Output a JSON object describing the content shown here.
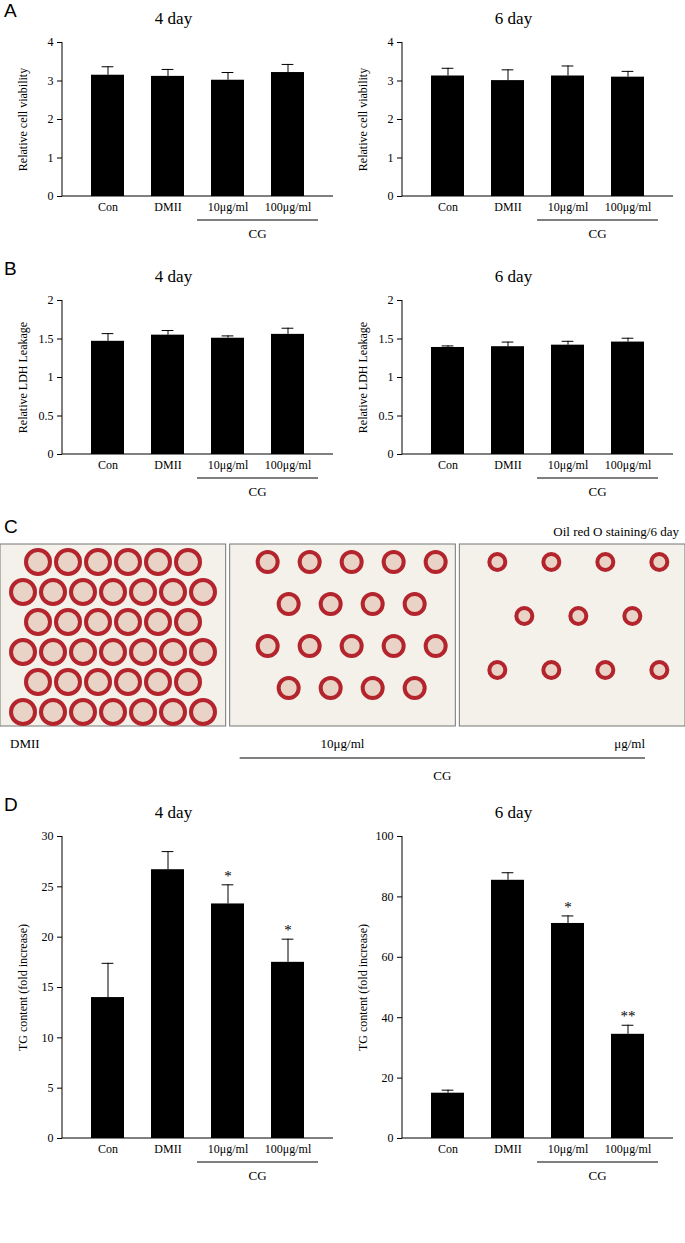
{
  "chart_data": [
    {
      "panel": "A",
      "type": "bar",
      "title": "4 day",
      "categories": [
        "Con",
        "DMII",
        "10μg/ml",
        "100μg/ml"
      ],
      "values": [
        3.15,
        3.12,
        3.02,
        3.22
      ],
      "errors": [
        0.22,
        0.18,
        0.2,
        0.21
      ],
      "ylabel": "Relative cell viability",
      "ylim": [
        0,
        4
      ],
      "yticks": [
        0,
        1,
        2,
        3,
        4
      ],
      "color": "#000000",
      "category_group": {
        "label": "CG",
        "members": [
          "10μg/ml",
          "100μg/ml"
        ]
      }
    },
    {
      "panel": "A",
      "type": "bar",
      "title": "6 day",
      "categories": [
        "Con",
        "DMII",
        "10μg/ml",
        "100μg/ml"
      ],
      "values": [
        3.13,
        3.01,
        3.13,
        3.1
      ],
      "errors": [
        0.2,
        0.28,
        0.26,
        0.15
      ],
      "ylabel": "Relative cell viability",
      "ylim": [
        0,
        4
      ],
      "yticks": [
        0,
        1,
        2,
        3,
        4
      ],
      "color": "#000000",
      "category_group": {
        "label": "CG",
        "members": [
          "10μg/ml",
          "100μg/ml"
        ]
      }
    },
    {
      "panel": "B",
      "type": "bar",
      "title": "4 day",
      "categories": [
        "Con",
        "DMII",
        "10μg/ml",
        "100μg/ml"
      ],
      "values": [
        1.47,
        1.55,
        1.51,
        1.56
      ],
      "errors": [
        0.1,
        0.06,
        0.03,
        0.08
      ],
      "ylabel": "Relative LDH Leakage",
      "ylim": [
        0,
        2
      ],
      "yticks": [
        0,
        0.5,
        1,
        1.5,
        2
      ],
      "color": "#000000",
      "category_group": {
        "label": "CG",
        "members": [
          "10μg/ml",
          "100μg/ml"
        ]
      }
    },
    {
      "panel": "B",
      "type": "bar",
      "title": "6 day",
      "categories": [
        "Con",
        "DMII",
        "10μg/ml",
        "100μg/ml"
      ],
      "values": [
        1.39,
        1.4,
        1.42,
        1.46
      ],
      "errors": [
        0.02,
        0.06,
        0.05,
        0.05
      ],
      "ylabel": "Relative LDH Leakage",
      "ylim": [
        0,
        2
      ],
      "yticks": [
        0,
        0.5,
        1,
        1.5,
        2
      ],
      "color": "#000000",
      "category_group": {
        "label": "CG",
        "members": [
          "10μg/ml",
          "100μg/ml"
        ]
      }
    },
    {
      "panel": "D",
      "type": "bar",
      "title": "4 day",
      "categories": [
        "Con",
        "DMII",
        "10μg/ml",
        "100μg/ml"
      ],
      "values": [
        14,
        26.7,
        23.3,
        17.5
      ],
      "errors": [
        3.4,
        1.8,
        1.9,
        2.3
      ],
      "significance": [
        null,
        null,
        "*",
        "*"
      ],
      "ylabel": "TG content (fold increase)",
      "ylim": [
        0,
        30
      ],
      "yticks": [
        0,
        5,
        10,
        15,
        20,
        25,
        30
      ],
      "color": "#000000",
      "category_group": {
        "label": "CG",
        "members": [
          "10μg/ml",
          "100μg/ml"
        ]
      }
    },
    {
      "panel": "D",
      "type": "bar",
      "title": "6 day",
      "categories": [
        "Con",
        "DMII",
        "10μg/ml",
        "100μg/ml"
      ],
      "values": [
        15,
        85.5,
        71.2,
        34.5
      ],
      "errors": [
        1,
        2.5,
        2.5,
        3
      ],
      "significance": [
        null,
        null,
        "*",
        "**"
      ],
      "ylabel": "TG content (fold increase)",
      "ylim": [
        0,
        100
      ],
      "yticks": [
        0,
        20,
        40,
        60,
        80,
        100
      ],
      "color": "#000000",
      "category_group": {
        "label": "CG",
        "members": [
          "10μg/ml",
          "100μg/ml"
        ]
      }
    }
  ],
  "image_panel": {
    "panel": "C",
    "title": "Oil red O staining/6 day",
    "images": [
      "DMII",
      "10μg/ml",
      "μg/ml"
    ],
    "category_group": {
      "label": "CG",
      "members": [
        "10μg/ml",
        "μg/ml"
      ]
    }
  }
}
